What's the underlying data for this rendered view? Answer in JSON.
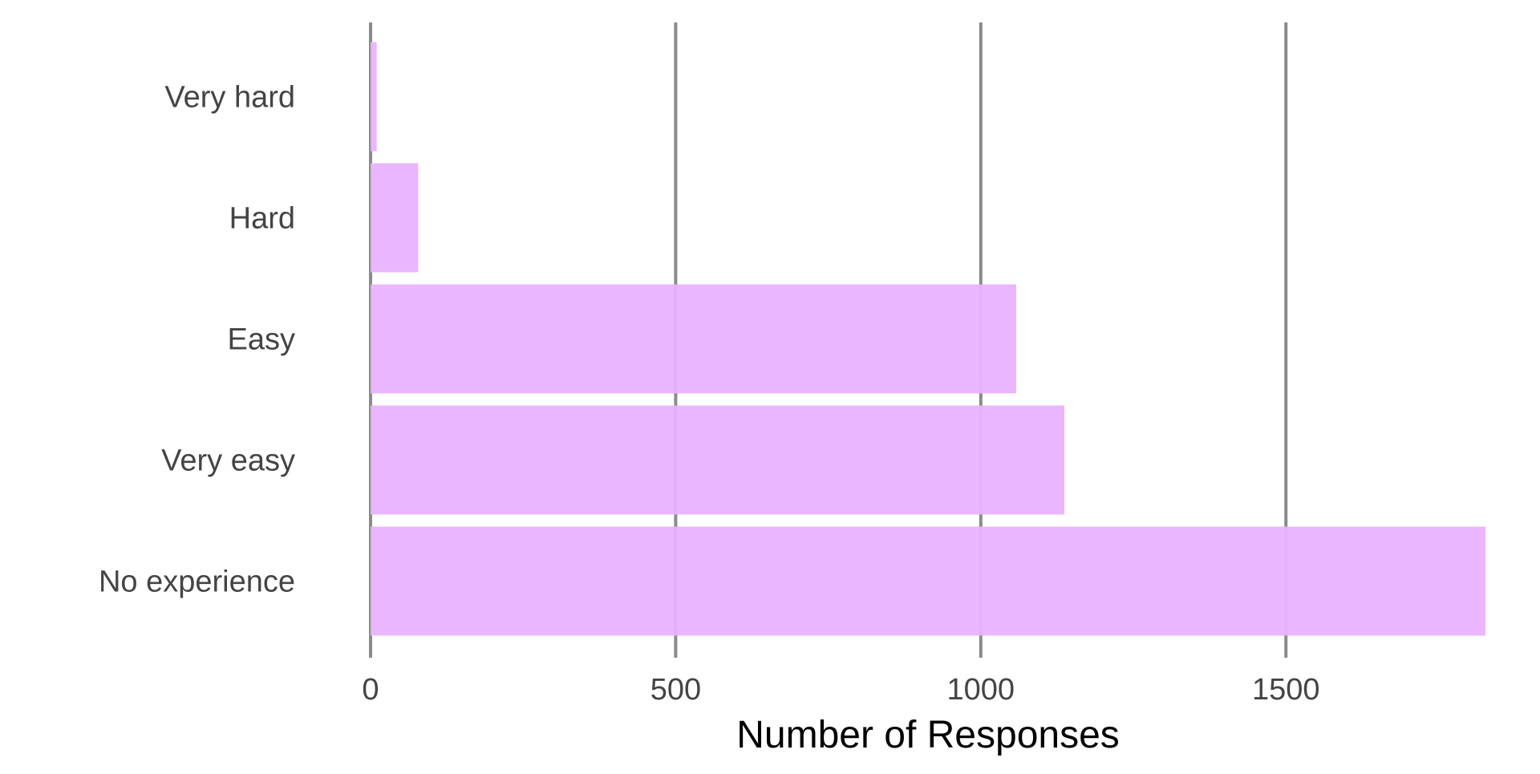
{
  "chart_data": {
    "type": "bar",
    "orientation": "horizontal",
    "categories": [
      "Very hard",
      "Hard",
      "Easy",
      "Very easy",
      "No experience"
    ],
    "values": [
      10,
      78,
      1058,
      1137,
      1827
    ],
    "title": "",
    "xlabel": "Number of Responses",
    "ylabel": "",
    "xlim": [
      0,
      1827
    ],
    "x_ticks": [
      0,
      500,
      1000,
      1500
    ],
    "x_tick_labels": [
      "0",
      "500",
      "1000",
      "1500"
    ],
    "grid": "vertical major",
    "bar_color": "#e9b2fd",
    "grid_color": "#8a8a8a",
    "text_color": "#444444"
  }
}
